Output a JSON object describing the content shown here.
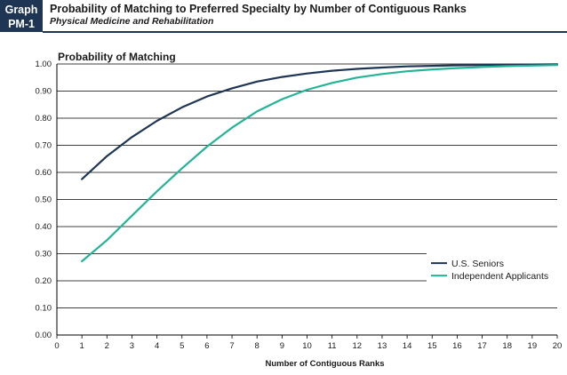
{
  "header": {
    "badge_line1": "Graph",
    "badge_line2": "PM-1",
    "title": "Probability of Matching to Preferred Specialty by Number of Contiguous Ranks",
    "subtitle": "Physical Medicine and Rehabilitation"
  },
  "colors": {
    "header_bg": "#1e3553",
    "us_seniors": "#1e3553",
    "independent_applicants": "#23b496"
  },
  "chart_data": {
    "type": "line",
    "title": "Probability of Matching",
    "xlabel": "Number of Contiguous Ranks",
    "ylabel": "",
    "xlim": [
      0,
      20
    ],
    "ylim": [
      0,
      1
    ],
    "x_ticks": [
      "0",
      "1",
      "2",
      "3",
      "4",
      "5",
      "6",
      "7",
      "8",
      "9",
      "10",
      "11",
      "12",
      "13",
      "14",
      "15",
      "16",
      "17",
      "18",
      "19",
      "20"
    ],
    "y_ticks": [
      "0.00",
      "0.10",
      "0.20",
      "0.30",
      "0.40",
      "0.50",
      "0.60",
      "0.70",
      "0.80",
      "0.90",
      "1.00"
    ],
    "grid": "horizontal",
    "legend_position": "bottom-right",
    "x": [
      1,
      2,
      3,
      4,
      5,
      6,
      7,
      8,
      9,
      10,
      11,
      12,
      13,
      14,
      15,
      16,
      17,
      18,
      19,
      20
    ],
    "series": [
      {
        "name": "U.S. Seniors",
        "color": "#1e3553",
        "values": [
          0.575,
          0.66,
          0.73,
          0.79,
          0.84,
          0.88,
          0.91,
          0.935,
          0.952,
          0.965,
          0.975,
          0.982,
          0.987,
          0.991,
          0.993,
          0.995,
          0.996,
          0.997,
          0.998,
          0.999
        ]
      },
      {
        "name": "Independent Applicants",
        "color": "#23b496",
        "values": [
          0.272,
          0.35,
          0.44,
          0.53,
          0.615,
          0.695,
          0.765,
          0.825,
          0.87,
          0.905,
          0.93,
          0.95,
          0.963,
          0.973,
          0.98,
          0.985,
          0.989,
          0.992,
          0.994,
          0.996
        ]
      }
    ]
  }
}
